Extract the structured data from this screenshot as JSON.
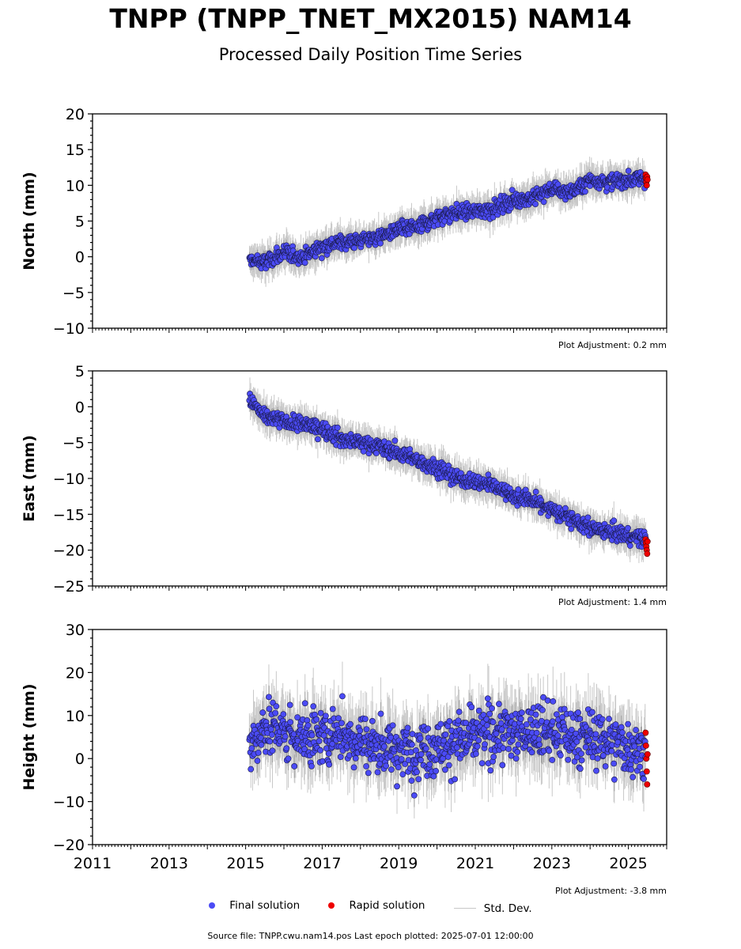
{
  "title": "TNPP (TNPP_TNET_MX2015) NAM14",
  "subtitle": "Processed Daily Position Time Series",
  "legend": {
    "final": "Final solution",
    "rapid": "Rapid solution",
    "stddev": "Std. Dev."
  },
  "source_text": "Source file: TNPP.cwu.nam14.pos  Last epoch plotted: 2025-07-01 12:00:00",
  "colors": {
    "final": "#4b4bf5",
    "rapid": "#ee0000",
    "stddev": "#c8c8c8",
    "marker_edge": "#1a1a4a"
  },
  "chart_data": [
    {
      "type": "scatter",
      "ylabel": "North (mm)",
      "adjustment": "Plot Adjustment: 0.2 mm",
      "xlim": [
        2011,
        2026
      ],
      "ylim": [
        -10,
        20
      ],
      "yticks": [
        -10,
        -5,
        0,
        5,
        10,
        15,
        20
      ],
      "ytick_labels": [
        "−10",
        "−5",
        "0",
        "5",
        "10",
        "15",
        "20"
      ],
      "series": [
        {
          "kind": "final",
          "x": [
            2015.1,
            2015.5,
            2016.0,
            2016.5,
            2017.0,
            2017.5,
            2018.0,
            2018.5,
            2019.0,
            2019.5,
            2020.0,
            2020.5,
            2021.0,
            2021.5,
            2022.0,
            2022.5,
            2023.0,
            2023.5,
            2024.0,
            2024.5,
            2025.0,
            2025.45
          ],
          "y": [
            -0.5,
            -0.8,
            0.5,
            0.0,
            1.5,
            2.0,
            2.3,
            2.8,
            3.8,
            4.2,
            5.5,
            6.2,
            6.3,
            6.8,
            8.0,
            8.2,
            9.5,
            9.0,
            10.8,
            10.5,
            10.8,
            11.0
          ]
        },
        {
          "kind": "rapid",
          "x": [
            2025.45,
            2025.46,
            2025.47,
            2025.48,
            2025.49,
            2025.5
          ],
          "y": [
            11.5,
            11.0,
            10.5,
            10.0,
            11.2,
            10.8
          ]
        }
      ]
    },
    {
      "type": "scatter",
      "ylabel": "East (mm)",
      "adjustment": "Plot Adjustment: 1.4 mm",
      "xlim": [
        2011,
        2026
      ],
      "ylim": [
        -25,
        5
      ],
      "yticks": [
        -25,
        -20,
        -15,
        -10,
        -5,
        0,
        5
      ],
      "ytick_labels": [
        "−25",
        "−20",
        "−15",
        "−10",
        "−5",
        "0",
        "5"
      ],
      "series": [
        {
          "kind": "final",
          "x": [
            2015.1,
            2015.5,
            2016.0,
            2016.5,
            2017.0,
            2017.5,
            2018.0,
            2018.5,
            2019.0,
            2019.5,
            2020.0,
            2020.5,
            2021.0,
            2021.5,
            2022.0,
            2022.5,
            2023.0,
            2023.5,
            2024.0,
            2024.5,
            2025.0,
            2025.45
          ],
          "y": [
            1.0,
            -1.5,
            -2.0,
            -2.5,
            -3.0,
            -4.5,
            -5.0,
            -5.5,
            -6.5,
            -7.5,
            -8.5,
            -10.0,
            -10.5,
            -11.0,
            -12.5,
            -13.0,
            -14.5,
            -15.5,
            -17.0,
            -17.5,
            -18.0,
            -18.5
          ]
        },
        {
          "kind": "rapid",
          "x": [
            2025.45,
            2025.46,
            2025.47,
            2025.48,
            2025.49,
            2025.5
          ],
          "y": [
            -18.5,
            -19.0,
            -19.5,
            -20.0,
            -20.5,
            -18.8
          ]
        }
      ]
    },
    {
      "type": "scatter",
      "ylabel": "Height (mm)",
      "adjustment": "Plot Adjustment: -3.8 mm",
      "xlim": [
        2011,
        2026
      ],
      "ylim": [
        -20,
        30
      ],
      "yticks": [
        -20,
        -10,
        0,
        10,
        20,
        30
      ],
      "ytick_labels": [
        "−20",
        "−10",
        "0",
        "10",
        "20",
        "30"
      ],
      "xticks": [
        2011,
        2013,
        2015,
        2017,
        2019,
        2021,
        2023,
        2025
      ],
      "xtick_labels": [
        "2011",
        "2013",
        "2015",
        "2017",
        "2019",
        "2021",
        "2023",
        "2025"
      ],
      "series": [
        {
          "kind": "final",
          "x": [
            2015.1,
            2015.5,
            2016.0,
            2016.5,
            2017.0,
            2017.5,
            2018.0,
            2018.5,
            2019.0,
            2019.5,
            2020.0,
            2020.5,
            2021.0,
            2021.5,
            2022.0,
            2022.5,
            2023.0,
            2023.5,
            2024.0,
            2024.5,
            2025.0,
            2025.45
          ],
          "y": [
            3,
            8,
            6,
            5,
            5,
            6,
            4,
            3,
            2,
            2,
            3,
            4,
            5,
            6,
            6,
            7,
            6,
            5,
            5,
            4,
            3,
            2
          ]
        },
        {
          "kind": "rapid",
          "x": [
            2025.45,
            2025.46,
            2025.47,
            2025.48,
            2025.49,
            2025.5
          ],
          "y": [
            6,
            3,
            0,
            -3,
            -6,
            1
          ]
        }
      ]
    }
  ]
}
